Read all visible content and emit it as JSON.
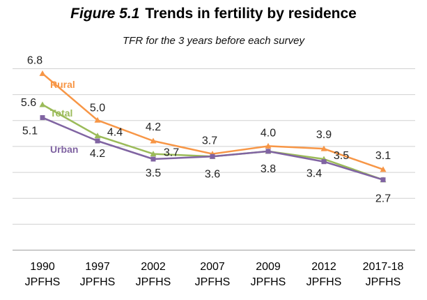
{
  "chart_data": {
    "type": "line",
    "title_figure": "Figure 5.1",
    "title": "Trends in fertility by residence",
    "subtitle": "TFR for the 3 years before each survey",
    "categories": [
      [
        "1990",
        "JPFHS"
      ],
      [
        "1997",
        "JPFHS"
      ],
      [
        "2002",
        "JPFHS"
      ],
      [
        "2007",
        "JPFHS"
      ],
      [
        "2009",
        "JPFHS"
      ],
      [
        "2012",
        "JPFHS"
      ],
      [
        "2017-18",
        "JPFHS"
      ]
    ],
    "ylim": [
      0,
      7
    ],
    "grid": true,
    "series": [
      {
        "name": "Rural",
        "color": "#f79646",
        "marker": "triangle",
        "values": [
          6.8,
          5.0,
          4.2,
          3.7,
          4.0,
          3.9,
          3.1
        ]
      },
      {
        "name": "Total",
        "color": "#9bbb59",
        "marker": "triangle",
        "values": [
          5.6,
          4.4,
          3.7,
          3.6,
          3.8,
          3.5,
          2.7
        ]
      },
      {
        "name": "Urban",
        "color": "#8064a2",
        "marker": "square",
        "values": [
          5.1,
          4.2,
          3.5,
          3.6,
          3.8,
          3.4,
          2.7
        ]
      }
    ]
  }
}
